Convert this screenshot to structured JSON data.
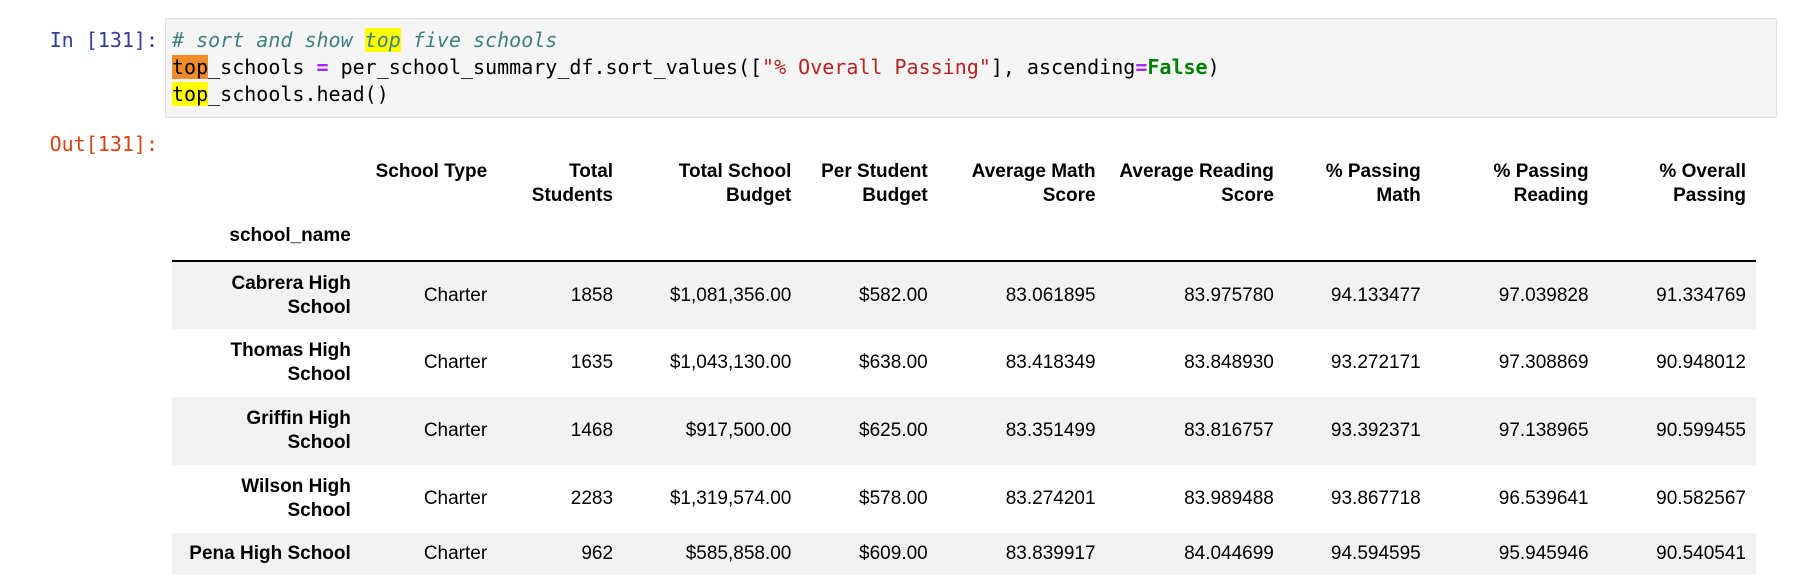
{
  "input_prompt": "In [131]:",
  "output_prompt": "Out[131]:",
  "code": {
    "line1_comment_pre": "# sort and show ",
    "line1_comment_hl": "top",
    "line1_comment_post": " five schools",
    "line2_var_hl": "top",
    "line2_var_rest": "_schools ",
    "line2_eq": "=",
    "line2_mid": " per_school_summary_df.sort_values([",
    "line2_str": "\"% Overall Passing\"",
    "line2_mid2": "], ascending",
    "line2_eq2": "=",
    "line2_kw": "False",
    "line2_end": ")",
    "line3_hl": "top",
    "line3_rest": "_schools.head()"
  },
  "table": {
    "index_name": "school_name",
    "columns": [
      "School Type",
      "Total Students",
      "Total School Budget",
      "Per Student Budget",
      "Average Math Score",
      "Average Reading Score",
      "% Passing Math",
      "% Passing Reading",
      "% Overall Passing"
    ],
    "rows": [
      {
        "name": "Cabrera High School",
        "cells": [
          "Charter",
          "1858",
          "$1,081,356.00",
          "$582.00",
          "83.061895",
          "83.975780",
          "94.133477",
          "97.039828",
          "91.334769"
        ]
      },
      {
        "name": "Thomas High School",
        "cells": [
          "Charter",
          "1635",
          "$1,043,130.00",
          "$638.00",
          "83.418349",
          "83.848930",
          "93.272171",
          "97.308869",
          "90.948012"
        ]
      },
      {
        "name": "Griffin High School",
        "cells": [
          "Charter",
          "1468",
          "$917,500.00",
          "$625.00",
          "83.351499",
          "83.816757",
          "93.392371",
          "97.138965",
          "90.599455"
        ]
      },
      {
        "name": "Wilson High School",
        "cells": [
          "Charter",
          "2283",
          "$1,319,574.00",
          "$578.00",
          "83.274201",
          "83.989488",
          "93.867718",
          "96.539641",
          "90.582567"
        ]
      },
      {
        "name": "Pena High School",
        "cells": [
          "Charter",
          "962",
          "$585,858.00",
          "$609.00",
          "83.839917",
          "84.044699",
          "94.594595",
          "95.945946",
          "90.540541"
        ]
      }
    ]
  }
}
